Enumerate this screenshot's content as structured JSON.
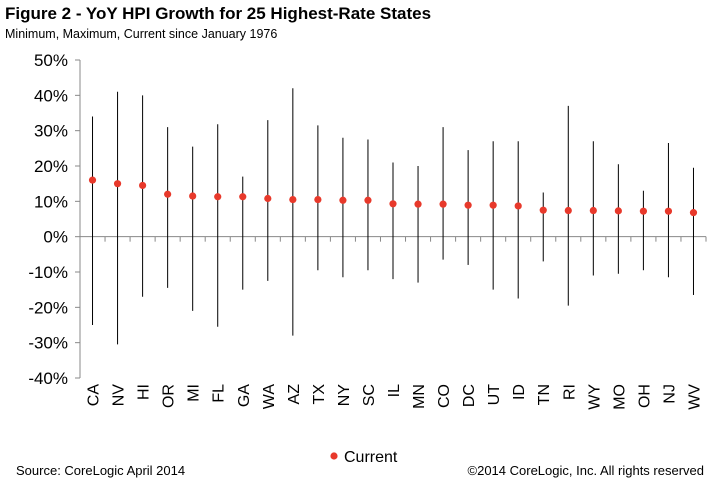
{
  "title": "Figure 2 - YoY HPI Growth for 25 Highest-Rate States",
  "subtitle": "Minimum, Maximum, Current since January 1976",
  "source": "Source: CoreLogic  April 2014",
  "copyright": "©2014 CoreLogic, Inc. All rights reserved",
  "colors": {
    "marker": "#e8392b",
    "line": "#000000",
    "axis": "#888888"
  },
  "chart_data": {
    "type": "scatter",
    "title": "Figure 2 - YoY HPI Growth for 25 Highest-Rate States",
    "subtitle": "Minimum, Maximum, Current since January 1976",
    "categories": [
      "CA",
      "NV",
      "HI",
      "OR",
      "MI",
      "FL",
      "GA",
      "WA",
      "AZ",
      "TX",
      "NY",
      "SC",
      "IL",
      "MN",
      "CO",
      "DC",
      "UT",
      "ID",
      "TN",
      "RI",
      "WY",
      "MO",
      "OH",
      "NJ",
      "WV"
    ],
    "series": [
      {
        "name": "Current",
        "values": [
          16,
          15,
          14.5,
          12,
          11.5,
          11.3,
          11.3,
          10.8,
          10.5,
          10.5,
          10.3,
          10.3,
          9.3,
          9.2,
          9.2,
          8.9,
          8.9,
          8.7,
          7.5,
          7.4,
          7.4,
          7.3,
          7.2,
          7.2,
          6.8
        ]
      },
      {
        "values": [
          34,
          41,
          40,
          31,
          25.5,
          31.8,
          17,
          33,
          42,
          31.5,
          28,
          27.5,
          21,
          20,
          31,
          24.5,
          27,
          27,
          12.5,
          37,
          27,
          20.5,
          13,
          26.5,
          19.5
        ]
      },
      {
        "values": [
          -25,
          -30.5,
          -17,
          -14.5,
          -21,
          -25.5,
          -15,
          -12.5,
          -28,
          -9.5,
          -11.5,
          -9.5,
          -12,
          -13,
          -6.5,
          -8,
          -15,
          -17.5,
          -7,
          -19.5,
          -11,
          -10.5,
          -9.5,
          -11.5,
          -16.5
        ]
      }
    ],
    "legend": {
      "position": "bottom",
      "entries": [
        "Current"
      ]
    },
    "yticks": [
      "50%",
      "40%",
      "30%",
      "20%",
      "10%",
      "0%",
      "-10%",
      "-20%",
      "-30%",
      "-40%"
    ],
    "ylim": [
      -40,
      50
    ],
    "grid": false
  }
}
